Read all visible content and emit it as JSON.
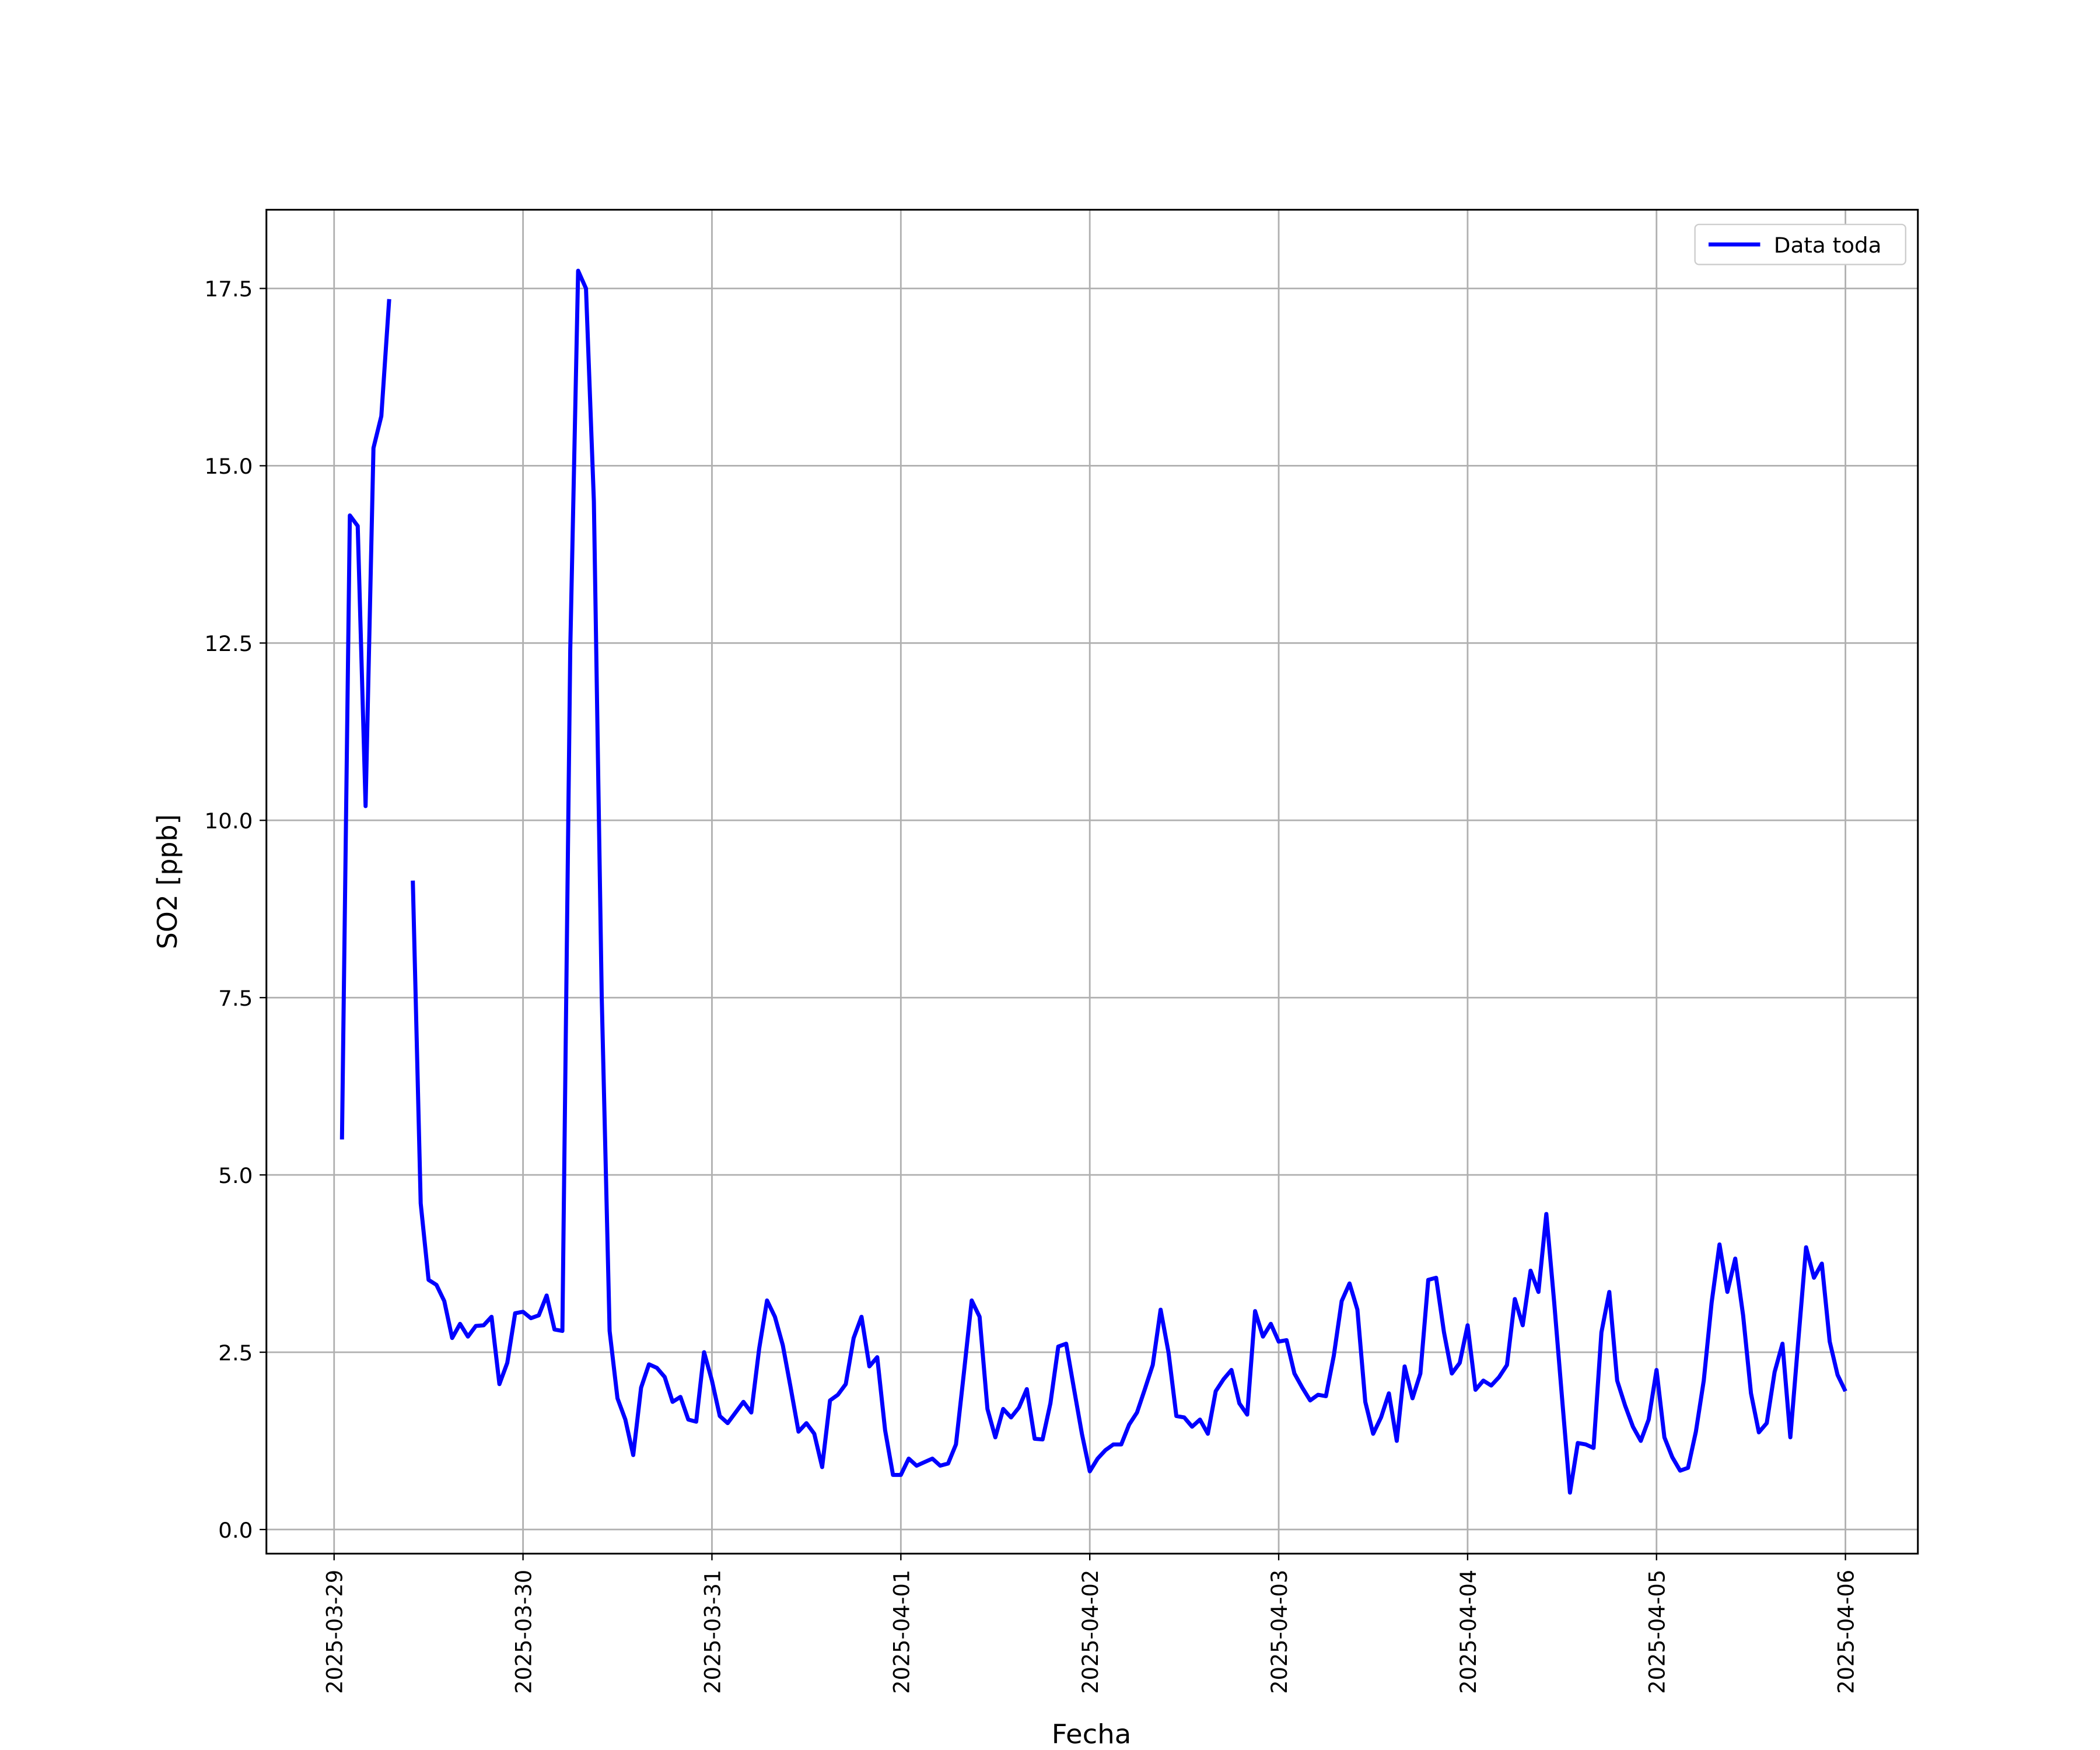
{
  "chart_data": {
    "type": "line",
    "xlabel": "Fecha",
    "ylabel": "SO2 [ppb]",
    "x": [
      "2025-03-29 01:00",
      "2025-03-29 02:00",
      "2025-03-29 03:00",
      "2025-03-29 04:00",
      "2025-03-29 05:00",
      "2025-03-29 06:00",
      "2025-03-29 07:00",
      "2025-03-29 08:00",
      "2025-03-29 09:00",
      "2025-03-29 10:00",
      "2025-03-29 11:00",
      "2025-03-29 12:00",
      "2025-03-29 13:00",
      "2025-03-29 14:00",
      "2025-03-29 15:00",
      "2025-03-29 16:00",
      "2025-03-29 17:00",
      "2025-03-29 18:00",
      "2025-03-29 19:00",
      "2025-03-29 20:00",
      "2025-03-29 21:00",
      "2025-03-29 22:00",
      "2025-03-29 23:00",
      "2025-03-30 00:00",
      "2025-03-30 01:00",
      "2025-03-30 02:00",
      "2025-03-30 03:00",
      "2025-03-30 04:00",
      "2025-03-30 05:00",
      "2025-03-30 06:00",
      "2025-03-30 07:00",
      "2025-03-30 08:00",
      "2025-03-30 09:00",
      "2025-03-30 10:00",
      "2025-03-30 11:00",
      "2025-03-30 12:00",
      "2025-03-30 13:00",
      "2025-03-30 14:00",
      "2025-03-30 15:00",
      "2025-03-30 16:00",
      "2025-03-30 17:00",
      "2025-03-30 18:00",
      "2025-03-30 19:00",
      "2025-03-30 20:00",
      "2025-03-30 21:00",
      "2025-03-30 22:00",
      "2025-03-30 23:00",
      "2025-03-31 00:00",
      "2025-03-31 01:00",
      "2025-03-31 02:00",
      "2025-03-31 03:00",
      "2025-03-31 04:00",
      "2025-03-31 05:00",
      "2025-03-31 06:00",
      "2025-03-31 07:00",
      "2025-03-31 08:00",
      "2025-03-31 09:00",
      "2025-03-31 10:00",
      "2025-03-31 11:00",
      "2025-03-31 12:00",
      "2025-03-31 13:00",
      "2025-03-31 14:00",
      "2025-03-31 15:00",
      "2025-03-31 16:00",
      "2025-03-31 17:00",
      "2025-03-31 18:00",
      "2025-03-31 19:00",
      "2025-03-31 20:00",
      "2025-03-31 21:00",
      "2025-03-31 22:00",
      "2025-03-31 23:00",
      "2025-04-01 00:00",
      "2025-04-01 01:00",
      "2025-04-01 02:00",
      "2025-04-01 03:00",
      "2025-04-01 04:00",
      "2025-04-01 05:00",
      "2025-04-01 06:00",
      "2025-04-01 07:00",
      "2025-04-01 08:00",
      "2025-04-01 09:00",
      "2025-04-01 10:00",
      "2025-04-01 11:00",
      "2025-04-01 12:00",
      "2025-04-01 13:00",
      "2025-04-01 14:00",
      "2025-04-01 15:00",
      "2025-04-01 16:00",
      "2025-04-01 17:00",
      "2025-04-01 18:00",
      "2025-04-01 19:00",
      "2025-04-01 20:00",
      "2025-04-01 21:00",
      "2025-04-01 22:00",
      "2025-04-01 23:00",
      "2025-04-02 00:00",
      "2025-04-02 01:00",
      "2025-04-02 02:00",
      "2025-04-02 03:00",
      "2025-04-02 04:00",
      "2025-04-02 05:00",
      "2025-04-02 06:00",
      "2025-04-02 07:00",
      "2025-04-02 08:00",
      "2025-04-02 09:00",
      "2025-04-02 10:00",
      "2025-04-02 11:00",
      "2025-04-02 12:00",
      "2025-04-02 13:00",
      "2025-04-02 14:00",
      "2025-04-02 15:00",
      "2025-04-02 16:00",
      "2025-04-02 17:00",
      "2025-04-02 18:00",
      "2025-04-02 19:00",
      "2025-04-02 20:00",
      "2025-04-02 21:00",
      "2025-04-02 22:00",
      "2025-04-02 23:00",
      "2025-04-03 00:00",
      "2025-04-03 01:00",
      "2025-04-03 02:00",
      "2025-04-03 03:00",
      "2025-04-03 04:00",
      "2025-04-03 05:00",
      "2025-04-03 06:00",
      "2025-04-03 07:00",
      "2025-04-03 08:00",
      "2025-04-03 09:00",
      "2025-04-03 10:00",
      "2025-04-03 11:00",
      "2025-04-03 12:00",
      "2025-04-03 13:00",
      "2025-04-03 14:00",
      "2025-04-03 15:00",
      "2025-04-03 16:00",
      "2025-04-03 17:00",
      "2025-04-03 18:00",
      "2025-04-03 19:00",
      "2025-04-03 20:00",
      "2025-04-03 21:00",
      "2025-04-03 22:00",
      "2025-04-03 23:00",
      "2025-04-04 00:00",
      "2025-04-04 01:00",
      "2025-04-04 02:00",
      "2025-04-04 03:00",
      "2025-04-04 04:00",
      "2025-04-04 05:00",
      "2025-04-04 06:00",
      "2025-04-04 07:00",
      "2025-04-04 08:00",
      "2025-04-04 09:00",
      "2025-04-04 10:00",
      "2025-04-04 11:00",
      "2025-04-04 12:00",
      "2025-04-04 13:00",
      "2025-04-04 14:00",
      "2025-04-04 15:00",
      "2025-04-04 16:00",
      "2025-04-04 17:00",
      "2025-04-04 18:00",
      "2025-04-04 19:00",
      "2025-04-04 20:00",
      "2025-04-04 21:00",
      "2025-04-04 22:00",
      "2025-04-04 23:00",
      "2025-04-05 00:00",
      "2025-04-05 01:00",
      "2025-04-05 02:00",
      "2025-04-05 03:00",
      "2025-04-05 04:00",
      "2025-04-05 05:00",
      "2025-04-05 06:00",
      "2025-04-05 07:00",
      "2025-04-05 08:00",
      "2025-04-05 09:00",
      "2025-04-05 10:00",
      "2025-04-05 11:00",
      "2025-04-05 12:00",
      "2025-04-05 13:00",
      "2025-04-05 14:00",
      "2025-04-05 15:00",
      "2025-04-05 16:00",
      "2025-04-05 17:00",
      "2025-04-05 18:00",
      "2025-04-05 19:00",
      "2025-04-05 20:00",
      "2025-04-05 21:00",
      "2025-04-05 22:00",
      "2025-04-05 23:00",
      "2025-04-06 00:00"
    ],
    "series": [
      {
        "name": "Data toda",
        "color": "#0000ff",
        "values": [
          5.5,
          14.3,
          14.15,
          10.2,
          15.25,
          15.7,
          17.35,
          null,
          null,
          9.15,
          4.6,
          3.52,
          3.45,
          3.22,
          2.7,
          2.9,
          2.72,
          2.87,
          2.88,
          3.0,
          2.05,
          2.35,
          3.05,
          3.07,
          2.98,
          3.02,
          3.3,
          2.82,
          2.8,
          12.4,
          17.75,
          17.5,
          14.5,
          7.5,
          2.8,
          1.85,
          1.55,
          1.05,
          2.0,
          2.33,
          2.28,
          2.15,
          1.8,
          1.87,
          1.55,
          1.52,
          2.5,
          2.1,
          1.6,
          1.5,
          1.65,
          1.8,
          1.65,
          2.55,
          3.23,
          3.0,
          2.6,
          2.0,
          1.38,
          1.5,
          1.35,
          0.88,
          1.82,
          1.9,
          2.05,
          2.7,
          3.0,
          2.3,
          2.43,
          1.4,
          0.77,
          0.77,
          1.0,
          0.9,
          0.95,
          1.0,
          0.9,
          0.93,
          1.2,
          2.2,
          3.23,
          3.0,
          1.7,
          1.3,
          1.7,
          1.58,
          1.72,
          1.98,
          1.28,
          1.27,
          1.78,
          2.58,
          2.62,
          1.98,
          1.35,
          0.82,
          1.0,
          1.12,
          1.2,
          1.2,
          1.48,
          1.65,
          1.98,
          2.32,
          3.1,
          2.5,
          1.6,
          1.58,
          1.45,
          1.55,
          1.35,
          1.95,
          2.12,
          2.25,
          1.78,
          1.62,
          3.08,
          2.72,
          2.9,
          2.65,
          2.67,
          2.2,
          2.0,
          1.82,
          1.9,
          1.88,
          2.45,
          3.22,
          3.47,
          3.1,
          1.8,
          1.35,
          1.58,
          1.92,
          1.25,
          2.3,
          1.85,
          2.2,
          3.52,
          3.55,
          2.78,
          2.2,
          2.35,
          2.88,
          1.97,
          2.1,
          2.03,
          2.15,
          2.32,
          3.25,
          2.88,
          3.65,
          3.35,
          4.45,
          3.2,
          1.85,
          0.52,
          1.22,
          1.2,
          1.15,
          2.78,
          3.35,
          2.1,
          1.75,
          1.45,
          1.25,
          1.55,
          2.25,
          1.3,
          1.02,
          0.83,
          0.87,
          1.38,
          2.1,
          3.2,
          4.02,
          3.35,
          3.82,
          3.02,
          1.92,
          1.37,
          1.5,
          2.22,
          2.62,
          1.3,
          2.65,
          3.98,
          3.55,
          3.75,
          2.65,
          2.18,
          1.95
        ]
      }
    ],
    "xlim": [
      "2025-03-28 15:24",
      "2025-04-06 09:12"
    ],
    "xticks": [
      "2025-03-29",
      "2025-03-30",
      "2025-03-31",
      "2025-04-01",
      "2025-04-02",
      "2025-04-03",
      "2025-04-04",
      "2025-04-05",
      "2025-04-06"
    ],
    "ylim": [
      -0.34,
      18.61
    ],
    "yticks": [
      {
        "value": 0,
        "label": "0.0"
      },
      2.5,
      {
        "value": 5,
        "label": "5.0"
      },
      7.5,
      {
        "value": 10,
        "label": "10.0"
      },
      12.5,
      {
        "value": 15,
        "label": "15.0"
      },
      17.5
    ],
    "grid": true,
    "legend": "upper right"
  }
}
